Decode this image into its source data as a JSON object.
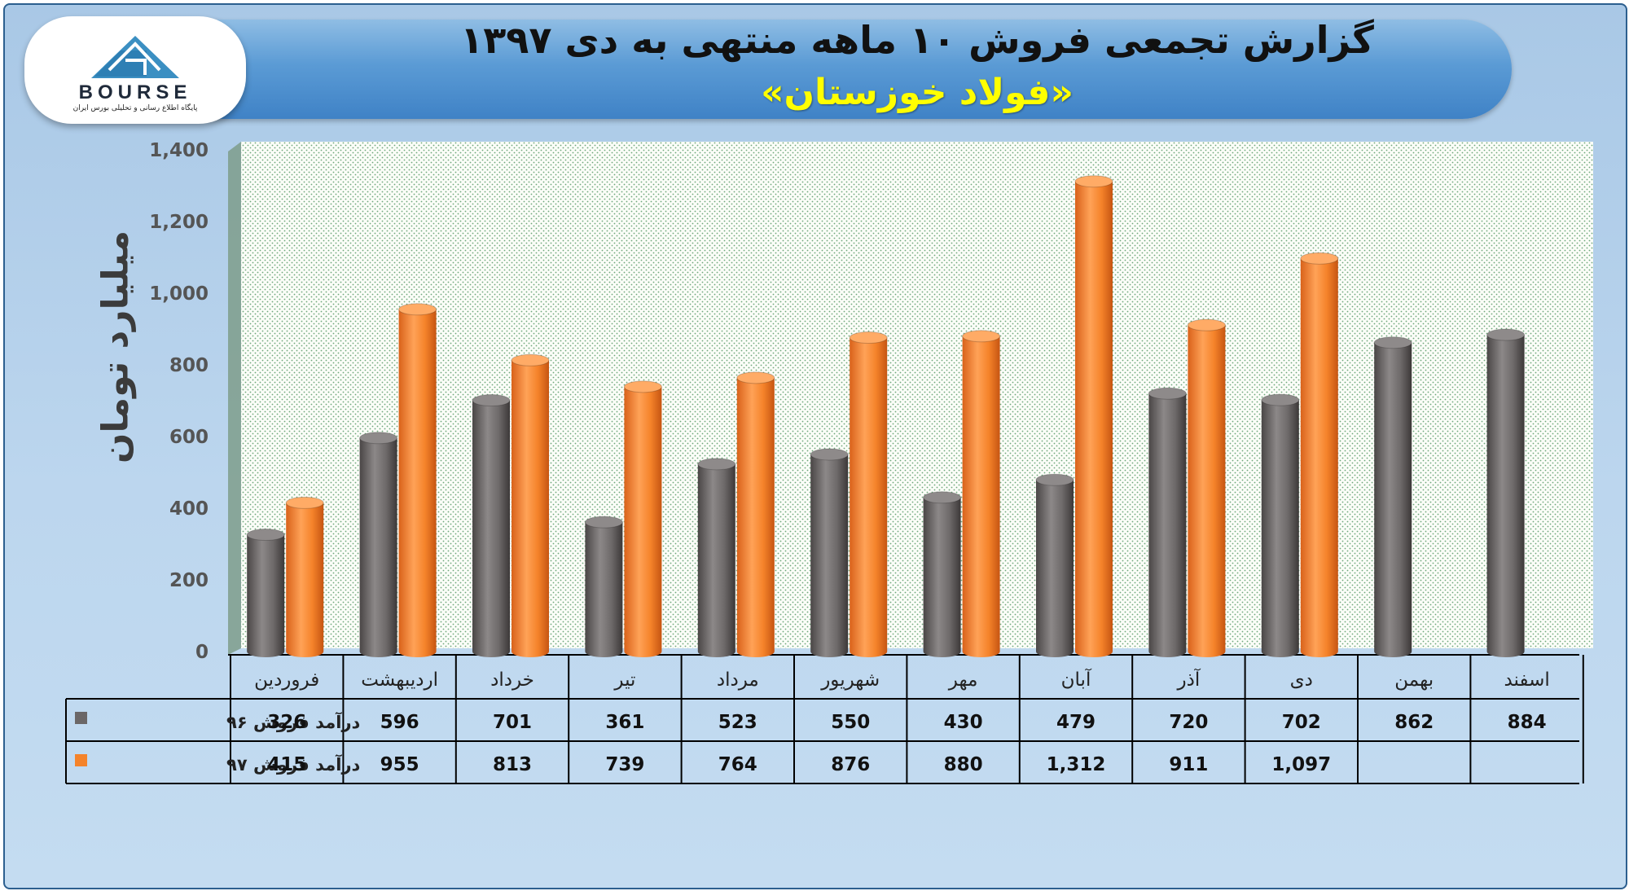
{
  "header": {
    "title": "گزارش تجمعی فروش ۱۰ ماهه منتهی به دی ۱۳۹۷",
    "subtitle": "«فولاد خوزستان»"
  },
  "logo": {
    "wordmark": "BOURSE",
    "tagline": "پایگاه اطلاع رسانی و تحلیلی بورس ایران"
  },
  "colors": {
    "series96": "#6b6767",
    "series97": "#f5832a",
    "accent": "#3f82c6",
    "title_highlight": "#ffff00"
  },
  "chart_data": {
    "type": "bar",
    "title": "گزارش تجمعی فروش ۱۰ ماهه منتهی به دی ۱۳۹۷",
    "ylabel": "میلیارد تومان",
    "xlabel": "",
    "ylim": [
      0,
      1400
    ],
    "yticks": [
      "0",
      "200",
      "400",
      "600",
      "800",
      "1,000",
      "1,200",
      "1,400"
    ],
    "grid": false,
    "categories": [
      "فروردین",
      "اردیبهشت",
      "خرداد",
      "تیر",
      "مرداد",
      "شهریور",
      "مهر",
      "آبان",
      "آذر",
      "دی",
      "بهمن",
      "اسفند"
    ],
    "series": [
      {
        "name": "درآمد فروش ۹۶",
        "values": [
          326,
          596,
          701,
          361,
          523,
          550,
          430,
          479,
          720,
          702,
          862,
          884
        ],
        "labels": [
          "326",
          "596",
          "701",
          "361",
          "523",
          "550",
          "430",
          "479",
          "720",
          "702",
          "862",
          "884"
        ]
      },
      {
        "name": "درآمد فروش ۹۷",
        "values": [
          415,
          955,
          813,
          739,
          764,
          876,
          880,
          1312,
          911,
          1097,
          null,
          null
        ],
        "labels": [
          "415",
          "955",
          "813",
          "739",
          "764",
          "876",
          "880",
          "1,312",
          "911",
          "1,097",
          "",
          ""
        ]
      }
    ]
  }
}
